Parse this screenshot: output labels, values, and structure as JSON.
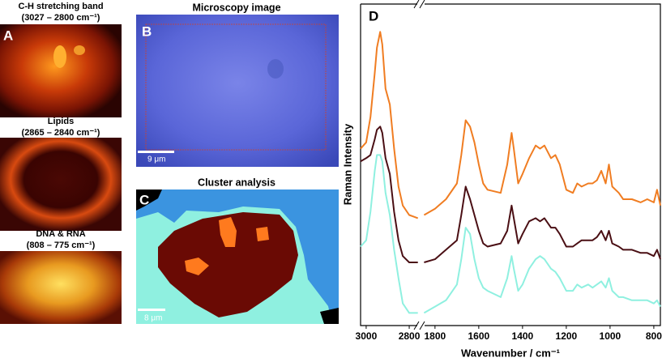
{
  "panels": {
    "A": {
      "label": "A",
      "images": [
        {
          "title": "C-H stretching band",
          "range": "(3027 – 2800 cm⁻¹)"
        },
        {
          "title": "Lipids",
          "range": "(2865 – 2840 cm⁻¹)"
        },
        {
          "title": "DNA & RNA",
          "range": "(808 – 775 cm⁻¹)"
        }
      ]
    },
    "B": {
      "label": "B",
      "title": "Microscopy image",
      "scale_bar": "9 μm"
    },
    "C": {
      "label": "C",
      "title": "Cluster analysis",
      "scale_bar": "8 μm"
    }
  },
  "chart_data": {
    "type": "line",
    "label": "D",
    "xlabel": "Wavenumber / cm⁻¹",
    "ylabel": "Raman Intensity",
    "xlim": [
      3026,
      770
    ],
    "axis_break": [
      2755,
      1855
    ],
    "xticks": [
      3000,
      2800,
      1800,
      1600,
      1400,
      1200,
      1000,
      800
    ],
    "ylim": [
      0,
      100
    ],
    "x": [
      3026,
      3000,
      2980,
      2960,
      2950,
      2935,
      2925,
      2910,
      2890,
      2870,
      2850,
      2830,
      2800,
      2760,
      1850,
      1800,
      1750,
      1700,
      1680,
      1660,
      1640,
      1620,
      1600,
      1580,
      1560,
      1500,
      1470,
      1450,
      1440,
      1420,
      1400,
      1370,
      1340,
      1320,
      1300,
      1270,
      1250,
      1230,
      1200,
      1170,
      1150,
      1130,
      1100,
      1080,
      1060,
      1040,
      1020,
      1005,
      990,
      960,
      940,
      900,
      860,
      830,
      800,
      785,
      770
    ],
    "series": [
      {
        "color": "#f07d22",
        "values": [
          56,
          58,
          66,
          80,
          88,
          93,
          89,
          75,
          70,
          56,
          44,
          38,
          35,
          34,
          35,
          37,
          40,
          45,
          54,
          65,
          63,
          58,
          51,
          45,
          43,
          42,
          51,
          61,
          56,
          45,
          48,
          53,
          57,
          56,
          57,
          53,
          54,
          51,
          43,
          42,
          45,
          44,
          45,
          45,
          46,
          49,
          45,
          51,
          44,
          42,
          40,
          40,
          39,
          40,
          39,
          43,
          38
        ]
      },
      {
        "color": "#4a0f14",
        "values": [
          52,
          53,
          54,
          59,
          62,
          63,
          61,
          53,
          48,
          36,
          27,
          22,
          20,
          20,
          20,
          21,
          24,
          27,
          35,
          44,
          40,
          35,
          30,
          26,
          25,
          26,
          30,
          38,
          34,
          26,
          29,
          33,
          34,
          33,
          34,
          31,
          31,
          29,
          25,
          25,
          26,
          27,
          27,
          27,
          28,
          30,
          27,
          30,
          26,
          25,
          24,
          24,
          23,
          23,
          22,
          24,
          21
        ]
      },
      {
        "color": "#8ff0e0",
        "values": [
          25,
          27,
          36,
          49,
          54,
          54,
          52,
          42,
          35,
          24,
          15,
          7,
          4,
          4,
          4,
          6,
          8,
          13,
          21,
          31,
          29,
          21,
          15,
          12,
          11,
          9,
          15,
          22,
          18,
          11,
          13,
          18,
          21,
          22,
          21,
          18,
          17,
          15,
          11,
          11,
          13,
          12,
          13,
          12,
          13,
          14,
          12,
          15,
          11,
          9,
          9,
          8,
          8,
          8,
          7,
          8,
          6
        ]
      }
    ]
  }
}
